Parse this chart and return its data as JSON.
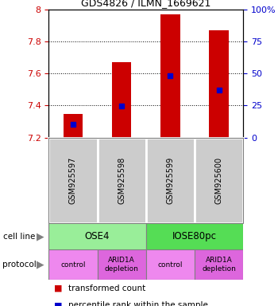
{
  "title": "GDS4826 / ILMN_1669621",
  "samples": [
    "GSM925597",
    "GSM925598",
    "GSM925599",
    "GSM925600"
  ],
  "transformed_counts": [
    7.35,
    7.67,
    7.97,
    7.87
  ],
  "percentile_ranks": [
    7.285,
    7.395,
    7.585,
    7.495
  ],
  "ylim": [
    7.2,
    8.0
  ],
  "yticks_left": [
    7.2,
    7.4,
    7.6,
    7.8,
    8.0
  ],
  "ytick_labels_left": [
    "7.2",
    "7.4",
    "7.6",
    "7.8",
    "8"
  ],
  "yticks_right_pct": [
    0,
    25,
    50,
    75,
    100
  ],
  "ytick_labels_right": [
    "0",
    "25",
    "50",
    "75",
    "100%"
  ],
  "bar_color": "#cc0000",
  "blue_color": "#0000cc",
  "bar_bottom": 7.2,
  "bar_width": 0.4,
  "cell_line_labels": [
    "OSE4",
    "IOSE80pc"
  ],
  "cell_line_color_ose4": "#99ee99",
  "cell_line_color_iose80": "#55dd55",
  "protocol_labels": [
    "control",
    "ARID1A\ndepletion",
    "control",
    "ARID1A\ndepletion"
  ],
  "protocol_color_control": "#ee88ee",
  "protocol_color_depletion": "#dd66dd",
  "sample_box_color": "#cccccc",
  "legend_red_label": "transformed count",
  "legend_blue_label": "percentile rank within the sample",
  "cell_line_label": "cell line",
  "protocol_label": "protocol",
  "grid_linestyle": "dotted",
  "grid_color": "black",
  "grid_linewidth": 0.7
}
